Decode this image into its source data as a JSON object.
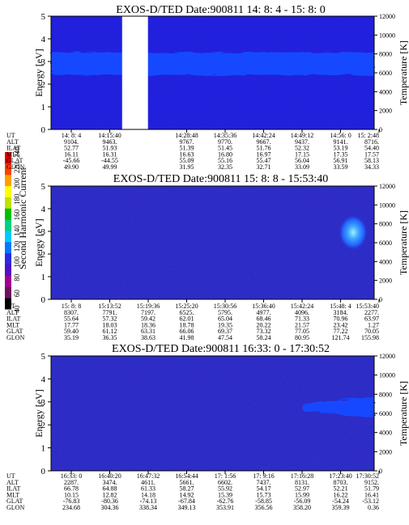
{
  "chart_data": [
    {
      "type": "heatmap",
      "title": "EXOS-D/TED   Date:900811  14: 8: 4 - 15: 8: 0",
      "ylabel": "Energy [eV]",
      "ylabel_right": "Temperature [K]",
      "ylim": [
        0,
        5
      ],
      "ylim_right": [
        0,
        12000
      ],
      "yticks": [
        "0",
        "1",
        "2",
        "3",
        "4",
        "5"
      ],
      "yticks_right": [
        "0",
        "2000",
        "4000",
        "6000",
        "8000",
        "10000",
        "12000"
      ],
      "background_color": "#2020dd",
      "band_color": "#1848ff",
      "band_energy": [
        2.4,
        3.4
      ],
      "data_gap_fraction": [
        0.22,
        0.3
      ],
      "hot_spot": false,
      "table": {
        "row_labels": [
          "UT",
          "ALT",
          "ILAT",
          "MLT",
          "GLAT",
          "GLON"
        ],
        "columns": [
          [
            "14: 8: 4",
            "9104.",
            "52.77",
            "16.11",
            "-45.66",
            "49.90"
          ],
          [
            "14:15:40",
            "9463.",
            "51.93",
            "16.31",
            "-44.55",
            "49.99"
          ],
          [
            "",
            "",
            "",
            "",
            "",
            ""
          ],
          [
            "14:28:48",
            "9767.",
            "51.39",
            "16.63",
            "55.09",
            "31.95"
          ],
          [
            "14:35:36",
            "9770.",
            "51.45",
            "16.80",
            "55.16",
            "32.35"
          ],
          [
            "14:42:24",
            "9667.",
            "51.76",
            "16.97",
            "55.47",
            "32.71"
          ],
          [
            "14:49:12",
            "9437.",
            "52.32",
            "17.15",
            "56.04",
            "33.09"
          ],
          [
            "14:56: 0",
            "9141.",
            "53.19",
            "17.35",
            "56.91",
            "33.59"
          ],
          [
            "15: 2:48",
            "8716.",
            "54.40",
            "17.57",
            "58.13",
            "34.33"
          ]
        ]
      }
    },
    {
      "type": "heatmap",
      "title": "EXOS-D/TED   Date:900811  15: 8: 8 - 15:53:40",
      "ylabel": "Energy [eV]",
      "ylabel_right": "Temperature [K]",
      "ylim": [
        0,
        5
      ],
      "ylim_right": [
        0,
        12000
      ],
      "yticks": [
        "0",
        "1",
        "2",
        "3",
        "4",
        "5"
      ],
      "yticks_right": [
        "0",
        "2000",
        "4000",
        "6000",
        "8000",
        "10000",
        "12000"
      ],
      "background_color": "#2c2cc6",
      "band_color": null,
      "hot_spot": true,
      "table": {
        "row_labels": [
          "UT",
          "ALT",
          "ILAT",
          "MLT",
          "GLAT",
          "GLON"
        ],
        "columns": [
          [
            "15: 8: 8",
            "8307.",
            "55.64",
            "17.77",
            "59.40",
            "35.19"
          ],
          [
            "15:13:52",
            "7791.",
            "57.32",
            "18.03",
            "61.12",
            "36.35"
          ],
          [
            "15:19:36",
            "7197.",
            "59.42",
            "18.36",
            "63.31",
            "38.63"
          ],
          [
            "15:25:20",
            "6525.",
            "62.01",
            "18.78",
            "66.06",
            "41.98"
          ],
          [
            "15:30:56",
            "5795.",
            "65.04",
            "19.35",
            "69.37",
            "47.54"
          ],
          [
            "15:36:40",
            "4977.",
            "68.46",
            "20.22",
            "73.32",
            "58.24"
          ],
          [
            "15:42:24",
            "4096.",
            "71.33",
            "21.57",
            "77.05",
            "80.95"
          ],
          [
            "15:48: 4",
            "3184.",
            "70.96",
            "23.42",
            "77.22",
            "121.74"
          ],
          [
            "15:53:40",
            "2277.",
            "63.97",
            "1.27",
            "70.05",
            "155.98"
          ]
        ]
      }
    },
    {
      "type": "heatmap",
      "title": "EXOS-D/TED   Date:900811  16:33: 0 - 17:30:52",
      "ylabel": "Energy [eV]",
      "ylabel_right": "Temperature [K]",
      "ylim": [
        0,
        5
      ],
      "ylim_right": [
        0,
        12000
      ],
      "yticks": [
        "0",
        "1",
        "2",
        "3",
        "4",
        "5"
      ],
      "yticks_right": [
        "0",
        "2000",
        "4000",
        "6000",
        "8000",
        "10000",
        "12000"
      ],
      "background_color": "#2c2cc6",
      "band_color": "#1848ff",
      "hot_spot": false,
      "table": {
        "row_labels": [
          "UT",
          "ALT",
          "ILAT",
          "MLT",
          "GLAT",
          "GLON"
        ],
        "columns": [
          [
            "16:33: 0",
            "2287.",
            "66.78",
            "10.15",
            "-76.83",
            "234.68"
          ],
          [
            "16:40:20",
            "3474.",
            "64.88",
            "12.82",
            "-80.36",
            "304.36"
          ],
          [
            "16:47:32",
            "4611.",
            "61.33",
            "14.18",
            "-74.13",
            "338.34"
          ],
          [
            "16:54:44",
            "5661.",
            "58.27",
            "14.92",
            "-67.84",
            "349.13"
          ],
          [
            "17: 1:56",
            "6602.",
            "55.92",
            "15.39",
            "-62.76",
            "353.91"
          ],
          [
            "17: 9:16",
            "7437.",
            "54.17",
            "15.73",
            "-58.85",
            "356.56"
          ],
          [
            "17:16:28",
            "8131.",
            "52.97",
            "15.99",
            "-56.09",
            "358.20"
          ],
          [
            "17:23:40",
            "8703.",
            "52.21",
            "16.22",
            "-54.24",
            "359.39"
          ],
          [
            "17:30:52",
            "9152.",
            "51.79",
            "16.41",
            "-53.12",
            "0.36"
          ]
        ]
      }
    }
  ],
  "colorbar": {
    "label": "Second Harmonic Current",
    "ticks": [
      "40",
      "60",
      "80",
      "100",
      "120",
      "140",
      "160",
      "180",
      "200",
      "220",
      "240"
    ],
    "colors": [
      "#000000",
      "#6e1060",
      "#a00090",
      "#5010c8",
      "#2a2ae0",
      "#0078ff",
      "#00c8ff",
      "#00d080",
      "#00c000",
      "#c0e000",
      "#ffff00",
      "#ffa000",
      "#ff4000",
      "#e00000"
    ]
  }
}
